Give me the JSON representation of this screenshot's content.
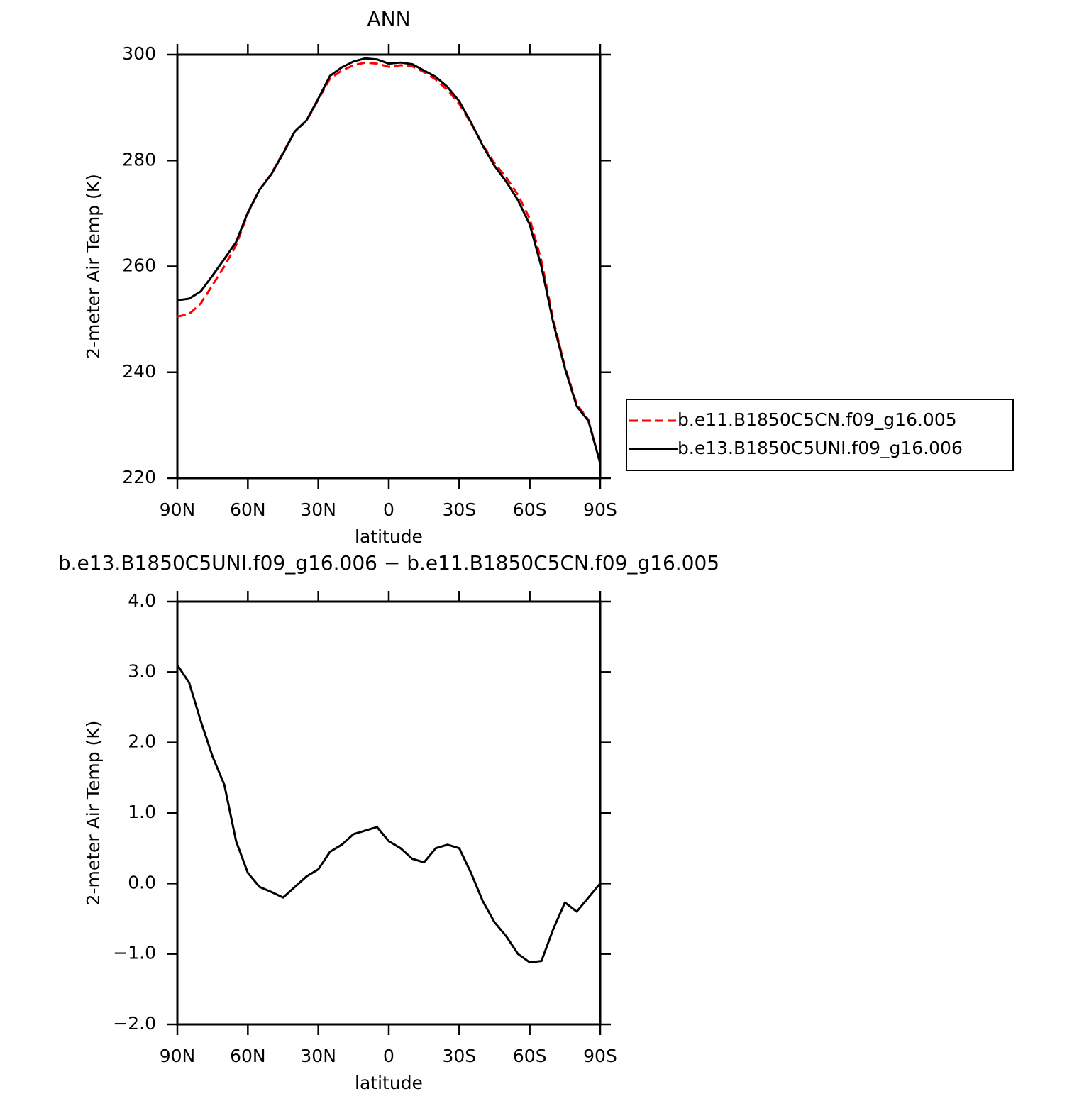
{
  "chart_data": [
    {
      "type": "line",
      "title": "ANN",
      "xlabel": "latitude",
      "ylabel": "2-meter Air Temp (K)",
      "x": [
        90,
        85,
        80,
        75,
        70,
        65,
        60,
        55,
        50,
        45,
        40,
        35,
        30,
        25,
        20,
        15,
        10,
        5,
        0,
        -5,
        -10,
        -15,
        -20,
        -25,
        -30,
        -35,
        -40,
        -45,
        -50,
        -55,
        -60,
        -65,
        -70,
        -75,
        -80,
        -85,
        -90
      ],
      "xlim": [
        90,
        -90
      ],
      "xticks": [
        {
          "value": 90,
          "label": "90N"
        },
        {
          "value": 60,
          "label": "60N"
        },
        {
          "value": 30,
          "label": "30N"
        },
        0,
        {
          "value": -30,
          "label": "30S"
        },
        {
          "value": -60,
          "label": "60S"
        },
        {
          "value": -90,
          "label": "90S"
        }
      ],
      "ylim": [
        220,
        300
      ],
      "yticks": [
        220,
        240,
        260,
        280,
        300
      ],
      "legend": "outside-right",
      "series": [
        {
          "name": "b.e11.B1850C5CN.f09_g16.005",
          "color": "#ff0000",
          "style": "dashed",
          "values": [
            250.5,
            251,
            253,
            256.5,
            260,
            264,
            270,
            274.5,
            277.5,
            281.5,
            285.5,
            287.5,
            291.5,
            295.5,
            297,
            298,
            298.5,
            298.3,
            297.7,
            298,
            297.8,
            296.7,
            295.3,
            293.3,
            290.7,
            287,
            283,
            279.5,
            276.8,
            273.5,
            269,
            261,
            250,
            241,
            234,
            231,
            222.8
          ]
        },
        {
          "name": "b.e13.B1850C5UNI.f09_g16.006",
          "color": "#000000",
          "style": "solid",
          "values": [
            253.6,
            253.9,
            255.3,
            258.3,
            261.4,
            264.6,
            270.2,
            274.5,
            277.4,
            281.3,
            285.5,
            287.6,
            291.7,
            296,
            297.6,
            298.7,
            299.3,
            299.1,
            298.3,
            298.5,
            298.2,
            297,
            295.8,
            293.9,
            291.2,
            287.2,
            282.8,
            279,
            276,
            272.5,
            267.9,
            259.9,
            249.4,
            240.7,
            233.6,
            230.8,
            222.8
          ]
        }
      ]
    },
    {
      "type": "line",
      "title": "b.e13.B1850C5UNI.f09_g16.006 − b.e11.B1850C5CN.f09_g16.005",
      "xlabel": "latitude",
      "ylabel": "2-meter Air Temp (K)",
      "x": [
        90,
        85,
        80,
        75,
        70,
        65,
        60,
        55,
        50,
        45,
        40,
        35,
        30,
        25,
        20,
        15,
        10,
        5,
        0,
        -5,
        -10,
        -15,
        -20,
        -25,
        -30,
        -35,
        -40,
        -45,
        -50,
        -55,
        -60,
        -65,
        -70,
        -75,
        -80,
        -85,
        -90
      ],
      "xlim": [
        90,
        -90
      ],
      "xticks": [
        {
          "value": 90,
          "label": "90N"
        },
        {
          "value": 60,
          "label": "60N"
        },
        {
          "value": 30,
          "label": "30N"
        },
        0,
        {
          "value": -30,
          "label": "30S"
        },
        {
          "value": -60,
          "label": "60S"
        },
        {
          "value": -90,
          "label": "90S"
        }
      ],
      "ylim": [
        -2,
        4
      ],
      "yticks": [
        {
          "value": -2,
          "label": "−2.0"
        },
        {
          "value": -1,
          "label": "−1.0"
        },
        {
          "value": 0,
          "label": "0.0"
        },
        {
          "value": 1,
          "label": "1.0"
        },
        {
          "value": 2,
          "label": "2.0"
        },
        {
          "value": 3,
          "label": "3.0"
        },
        {
          "value": 4,
          "label": "4.0"
        }
      ],
      "color": "#000000",
      "values": [
        3.1,
        2.85,
        2.3,
        1.8,
        1.4,
        0.6,
        0.15,
        -0.05,
        -0.12,
        -0.2,
        -0.05,
        0.1,
        0.2,
        0.45,
        0.55,
        0.7,
        0.75,
        0.8,
        0.6,
        0.5,
        0.35,
        0.3,
        0.5,
        0.55,
        0.5,
        0.15,
        -0.25,
        -0.55,
        -0.75,
        -1.0,
        -1.12,
        -1.1,
        -0.65,
        -0.27,
        -0.4,
        -0.2,
        0.0
      ]
    }
  ]
}
